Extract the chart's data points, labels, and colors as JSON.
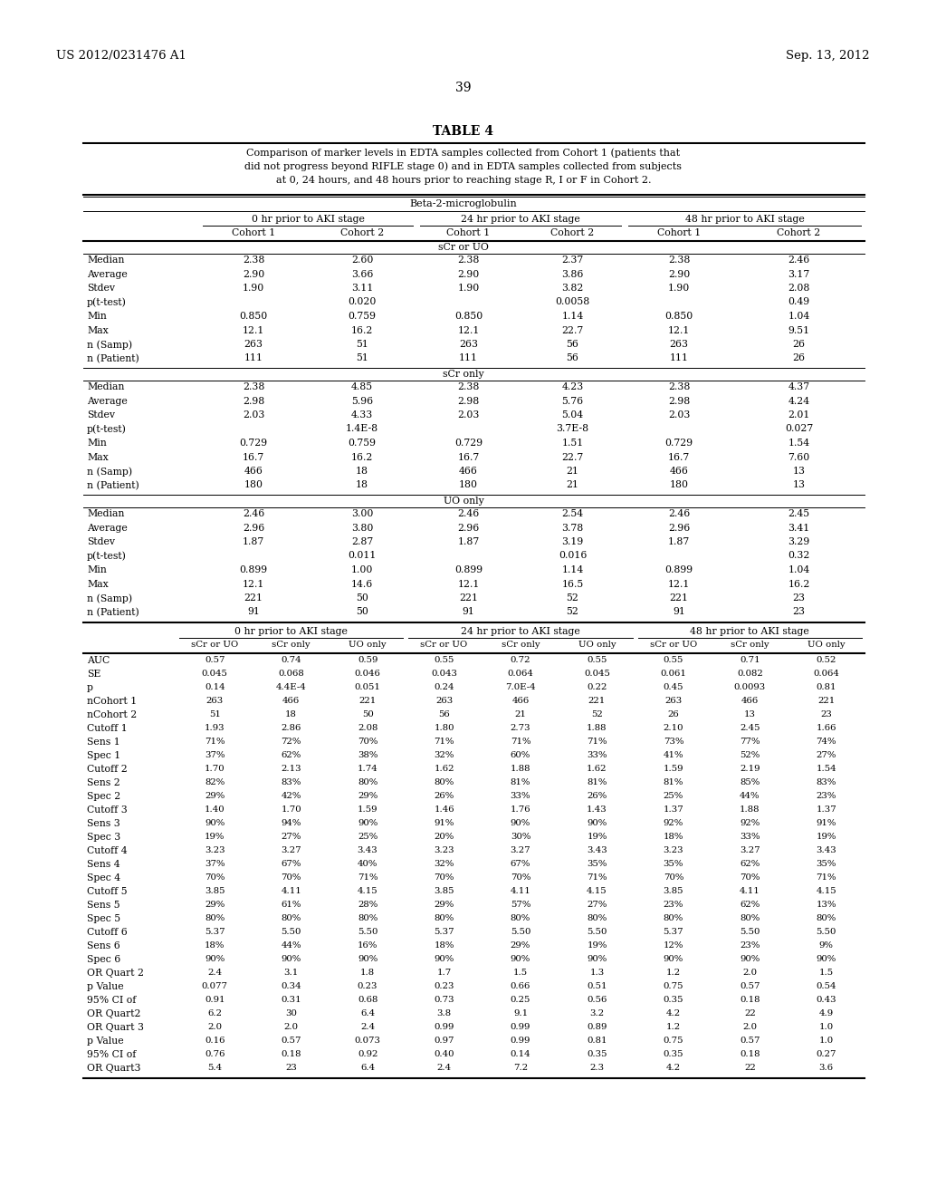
{
  "header_left": "US 2012/0231476 A1",
  "header_right": "Sep. 13, 2012",
  "page_num": "39",
  "table_title": "TABLE 4",
  "table_caption": "Comparison of marker levels in EDTA samples collected from Cohort 1 (patients that\ndid not progress beyond RIFLE stage 0) and in EDTA samples collected from subjects\nat 0, 24 hours, and 48 hours prior to reaching stage R, I or F in Cohort 2.",
  "section1_title": "Beta-2-microglobulin",
  "time_headers": [
    "0 hr prior to AKI stage",
    "24 hr prior to AKI stage",
    "48 hr prior to AKI stage"
  ],
  "cohort_headers": [
    "Cohort 1",
    "Cohort 2",
    "Cohort 1",
    "Cohort 2",
    "Cohort 1",
    "Cohort 2"
  ],
  "subsection1": "sCr or UO",
  "s1_rows": [
    [
      "Median",
      "2.38",
      "2.60",
      "2.38",
      "2.37",
      "2.38",
      "2.46"
    ],
    [
      "Average",
      "2.90",
      "3.66",
      "2.90",
      "3.86",
      "2.90",
      "3.17"
    ],
    [
      "Stdev",
      "1.90",
      "3.11",
      "1.90",
      "3.82",
      "1.90",
      "2.08"
    ],
    [
      "p(t-test)",
      "",
      "0.020",
      "",
      "0.0058",
      "",
      "0.49"
    ],
    [
      "Min",
      "0.850",
      "0.759",
      "0.850",
      "1.14",
      "0.850",
      "1.04"
    ],
    [
      "Max",
      "12.1",
      "16.2",
      "12.1",
      "22.7",
      "12.1",
      "9.51"
    ],
    [
      "n (Samp)",
      "263",
      "51",
      "263",
      "56",
      "263",
      "26"
    ],
    [
      "n (Patient)",
      "111",
      "51",
      "111",
      "56",
      "111",
      "26"
    ]
  ],
  "subsection2": "sCr only",
  "s2_rows": [
    [
      "Median",
      "2.38",
      "4.85",
      "2.38",
      "4.23",
      "2.38",
      "4.37"
    ],
    [
      "Average",
      "2.98",
      "5.96",
      "2.98",
      "5.76",
      "2.98",
      "4.24"
    ],
    [
      "Stdev",
      "2.03",
      "4.33",
      "2.03",
      "5.04",
      "2.03",
      "2.01"
    ],
    [
      "p(t-test)",
      "",
      "1.4E-8",
      "",
      "3.7E-8",
      "",
      "0.027"
    ],
    [
      "Min",
      "0.729",
      "0.759",
      "0.729",
      "1.51",
      "0.729",
      "1.54"
    ],
    [
      "Max",
      "16.7",
      "16.2",
      "16.7",
      "22.7",
      "16.7",
      "7.60"
    ],
    [
      "n (Samp)",
      "466",
      "18",
      "466",
      "21",
      "466",
      "13"
    ],
    [
      "n (Patient)",
      "180",
      "18",
      "180",
      "21",
      "180",
      "13"
    ]
  ],
  "subsection3": "UO only",
  "s3_rows": [
    [
      "Median",
      "2.46",
      "3.00",
      "2.46",
      "2.54",
      "2.46",
      "2.45"
    ],
    [
      "Average",
      "2.96",
      "3.80",
      "2.96",
      "3.78",
      "2.96",
      "3.41"
    ],
    [
      "Stdev",
      "1.87",
      "2.87",
      "1.87",
      "3.19",
      "1.87",
      "3.29"
    ],
    [
      "p(t-test)",
      "",
      "0.011",
      "",
      "0.016",
      "",
      "0.32"
    ],
    [
      "Min",
      "0.899",
      "1.00",
      "0.899",
      "1.14",
      "0.899",
      "1.04"
    ],
    [
      "Max",
      "12.1",
      "14.6",
      "12.1",
      "16.5",
      "12.1",
      "16.2"
    ],
    [
      "n (Samp)",
      "221",
      "50",
      "221",
      "52",
      "221",
      "23"
    ],
    [
      "n (Patient)",
      "91",
      "50",
      "91",
      "52",
      "91",
      "23"
    ]
  ],
  "section2_time_headers": [
    "0 hr prior to AKI stage",
    "24 hr prior to AKI stage",
    "48 hr prior to AKI stage"
  ],
  "section2_col_headers": [
    "sCr or UO",
    "sCr only",
    "UO only",
    "sCr or UO",
    "sCr only",
    "UO only",
    "sCr or UO",
    "sCr only",
    "UO only"
  ],
  "s4_rows": [
    [
      "AUC",
      "0.57",
      "0.74",
      "0.59",
      "0.55",
      "0.72",
      "0.55",
      "0.55",
      "0.71",
      "0.52"
    ],
    [
      "SE",
      "0.045",
      "0.068",
      "0.046",
      "0.043",
      "0.064",
      "0.045",
      "0.061",
      "0.082",
      "0.064"
    ],
    [
      "p",
      "0.14",
      "4.4E-4",
      "0.051",
      "0.24",
      "7.0E-4",
      "0.22",
      "0.45",
      "0.0093",
      "0.81"
    ],
    [
      "nCohort 1",
      "263",
      "466",
      "221",
      "263",
      "466",
      "221",
      "263",
      "466",
      "221"
    ],
    [
      "nCohort 2",
      "51",
      "18",
      "50",
      "56",
      "21",
      "52",
      "26",
      "13",
      "23"
    ],
    [
      "Cutoff 1",
      "1.93",
      "2.86",
      "2.08",
      "1.80",
      "2.73",
      "1.88",
      "2.10",
      "2.45",
      "1.66"
    ],
    [
      "Sens 1",
      "71%",
      "72%",
      "70%",
      "71%",
      "71%",
      "71%",
      "73%",
      "77%",
      "74%"
    ],
    [
      "Spec 1",
      "37%",
      "62%",
      "38%",
      "32%",
      "60%",
      "33%",
      "41%",
      "52%",
      "27%"
    ],
    [
      "Cutoff 2",
      "1.70",
      "2.13",
      "1.74",
      "1.62",
      "1.88",
      "1.62",
      "1.59",
      "2.19",
      "1.54"
    ],
    [
      "Sens 2",
      "82%",
      "83%",
      "80%",
      "80%",
      "81%",
      "81%",
      "81%",
      "85%",
      "83%"
    ],
    [
      "Spec 2",
      "29%",
      "42%",
      "29%",
      "26%",
      "33%",
      "26%",
      "25%",
      "44%",
      "23%"
    ],
    [
      "Cutoff 3",
      "1.40",
      "1.70",
      "1.59",
      "1.46",
      "1.76",
      "1.43",
      "1.37",
      "1.88",
      "1.37"
    ],
    [
      "Sens 3",
      "90%",
      "94%",
      "90%",
      "91%",
      "90%",
      "90%",
      "92%",
      "92%",
      "91%"
    ],
    [
      "Spec 3",
      "19%",
      "27%",
      "25%",
      "20%",
      "30%",
      "19%",
      "18%",
      "33%",
      "19%"
    ],
    [
      "Cutoff 4",
      "3.23",
      "3.27",
      "3.43",
      "3.23",
      "3.27",
      "3.43",
      "3.23",
      "3.27",
      "3.43"
    ],
    [
      "Sens 4",
      "37%",
      "67%",
      "40%",
      "32%",
      "67%",
      "35%",
      "35%",
      "62%",
      "35%"
    ],
    [
      "Spec 4",
      "70%",
      "70%",
      "71%",
      "70%",
      "70%",
      "71%",
      "70%",
      "70%",
      "71%"
    ],
    [
      "Cutoff 5",
      "3.85",
      "4.11",
      "4.15",
      "3.85",
      "4.11",
      "4.15",
      "3.85",
      "4.11",
      "4.15"
    ],
    [
      "Sens 5",
      "29%",
      "61%",
      "28%",
      "29%",
      "57%",
      "27%",
      "23%",
      "62%",
      "13%"
    ],
    [
      "Spec 5",
      "80%",
      "80%",
      "80%",
      "80%",
      "80%",
      "80%",
      "80%",
      "80%",
      "80%"
    ],
    [
      "Cutoff 6",
      "5.37",
      "5.50",
      "5.50",
      "5.37",
      "5.50",
      "5.50",
      "5.37",
      "5.50",
      "5.50"
    ],
    [
      "Sens 6",
      "18%",
      "44%",
      "16%",
      "18%",
      "29%",
      "19%",
      "12%",
      "23%",
      "9%"
    ],
    [
      "Spec 6",
      "90%",
      "90%",
      "90%",
      "90%",
      "90%",
      "90%",
      "90%",
      "90%",
      "90%"
    ],
    [
      "OR Quart 2",
      "2.4",
      "3.1",
      "1.8",
      "1.7",
      "1.5",
      "1.3",
      "1.2",
      "2.0",
      "1.5"
    ],
    [
      "p Value",
      "0.077",
      "0.34",
      "0.23",
      "0.23",
      "0.66",
      "0.51",
      "0.75",
      "0.57",
      "0.54"
    ],
    [
      "95% CI of",
      "0.91",
      "0.31",
      "0.68",
      "0.73",
      "0.25",
      "0.56",
      "0.35",
      "0.18",
      "0.43"
    ],
    [
      "OR Quart2",
      "6.2",
      "30",
      "6.4",
      "3.8",
      "9.1",
      "3.2",
      "4.2",
      "22",
      "4.9"
    ],
    [
      "OR Quart 3",
      "2.0",
      "2.0",
      "2.4",
      "0.99",
      "0.99",
      "0.89",
      "1.2",
      "2.0",
      "1.0"
    ],
    [
      "p Value",
      "0.16",
      "0.57",
      "0.073",
      "0.97",
      "0.99",
      "0.81",
      "0.75",
      "0.57",
      "1.0"
    ],
    [
      "95% CI of",
      "0.76",
      "0.18",
      "0.92",
      "0.40",
      "0.14",
      "0.35",
      "0.35",
      "0.18",
      "0.27"
    ],
    [
      "OR Quart3",
      "5.4",
      "23",
      "6.4",
      "2.4",
      "7.2",
      "2.3",
      "4.2",
      "22",
      "3.6"
    ]
  ]
}
